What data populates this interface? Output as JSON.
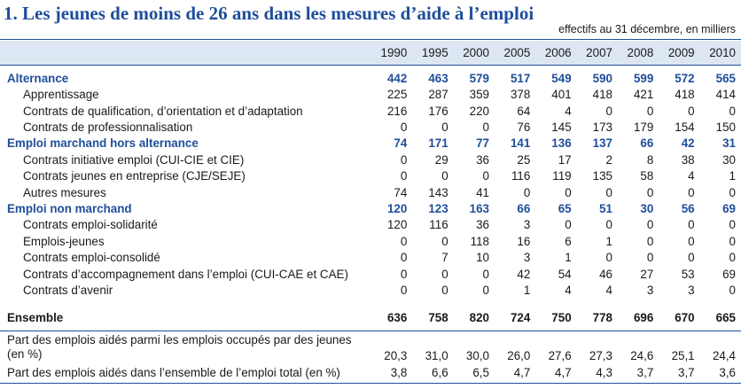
{
  "title": "1. Les jeunes de moins de 26 ans dans les mesures d’aide à l’emploi",
  "unit_note": "effectifs au 31 décembre, en milliers",
  "years": [
    "1990",
    "1995",
    "2000",
    "2005",
    "2006",
    "2007",
    "2008",
    "2009",
    "2010"
  ],
  "rows": [
    {
      "label": "Alternance",
      "kind": "cat",
      "values": [
        "442",
        "463",
        "579",
        "517",
        "549",
        "590",
        "599",
        "572",
        "565"
      ]
    },
    {
      "label": "Apprentissage",
      "kind": "sub",
      "values": [
        "225",
        "287",
        "359",
        "378",
        "401",
        "418",
        "421",
        "418",
        "414"
      ]
    },
    {
      "label": "Contrats de qualification, d’orientation et d’adaptation",
      "kind": "sub",
      "values": [
        "216",
        "176",
        "220",
        "64",
        "4",
        "0",
        "0",
        "0",
        "0"
      ]
    },
    {
      "label": "Contrats de professionnalisation",
      "kind": "sub",
      "values": [
        "0",
        "0",
        "0",
        "76",
        "145",
        "173",
        "179",
        "154",
        "150"
      ]
    },
    {
      "label": "Emploi marchand hors alternance",
      "kind": "cat",
      "values": [
        "74",
        "171",
        "77",
        "141",
        "136",
        "137",
        "66",
        "42",
        "31"
      ]
    },
    {
      "label": "Contrats initiative emploi (CUI-CIE et CIE)",
      "kind": "sub",
      "values": [
        "0",
        "29",
        "36",
        "25",
        "17",
        "2",
        "8",
        "38",
        "30"
      ]
    },
    {
      "label": "Contrats jeunes en entreprise (CJE/SEJE)",
      "kind": "sub",
      "values": [
        "0",
        "0",
        "0",
        "116",
        "119",
        "135",
        "58",
        "4",
        "1"
      ]
    },
    {
      "label": "Autres mesures",
      "kind": "sub",
      "values": [
        "74",
        "143",
        "41",
        "0",
        "0",
        "0",
        "0",
        "0",
        "0"
      ]
    },
    {
      "label": "Emploi non marchand",
      "kind": "cat",
      "values": [
        "120",
        "123",
        "163",
        "66",
        "65",
        "51",
        "30",
        "56",
        "69"
      ]
    },
    {
      "label": "Contrats emploi-solidarité",
      "kind": "sub",
      "values": [
        "120",
        "116",
        "36",
        "3",
        "0",
        "0",
        "0",
        "0",
        "0"
      ]
    },
    {
      "label": "Emplois-jeunes",
      "kind": "sub",
      "values": [
        "0",
        "0",
        "118",
        "16",
        "6",
        "1",
        "0",
        "0",
        "0"
      ]
    },
    {
      "label": "Contrats emploi-consolidé",
      "kind": "sub",
      "values": [
        "0",
        "7",
        "10",
        "3",
        "1",
        "0",
        "0",
        "0",
        "0"
      ]
    },
    {
      "label": "Contrats d’accompagnement dans l’emploi (CUI-CAE et CAE)",
      "kind": "sub",
      "values": [
        "0",
        "0",
        "0",
        "42",
        "54",
        "46",
        "27",
        "53",
        "69"
      ]
    },
    {
      "label": "Contrats d’avenir",
      "kind": "sub",
      "values": [
        "0",
        "0",
        "0",
        "1",
        "4",
        "4",
        "3",
        "3",
        "0"
      ]
    }
  ],
  "total": {
    "label": "Ensemble",
    "values": [
      "636",
      "758",
      "820",
      "724",
      "750",
      "778",
      "696",
      "670",
      "665"
    ]
  },
  "share_youth": {
    "label": "Part des emplois aidés parmi les emplois occupés par des jeunes (en %)",
    "values": [
      "20,3",
      "31,0",
      "30,0",
      "26,0",
      "27,6",
      "27,3",
      "24,6",
      "25,1",
      "24,4"
    ]
  },
  "share_total": {
    "label": "Part des emplois aidés dans l’ensemble de l’emploi total (en %)",
    "values": [
      "3,8",
      "6,6",
      "6,5",
      "4,7",
      "4,7",
      "4,3",
      "3,7",
      "3,7",
      "3,6"
    ]
  },
  "colors": {
    "accent": "#1f4e9a",
    "header_band": "#dde6f3"
  }
}
